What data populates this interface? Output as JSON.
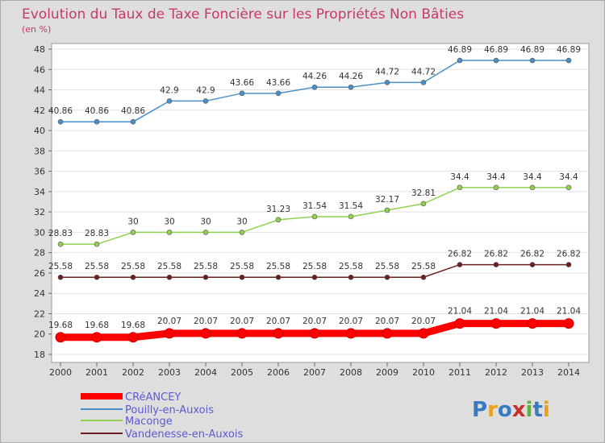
{
  "chart_data": {
    "type": "line",
    "title": "Evolution du Taux de Taxe Foncière sur les Propriétés Non Bâties",
    "unit_label": "(en %)",
    "x": [
      "2000",
      "2001",
      "2002",
      "2003",
      "2004",
      "2005",
      "2006",
      "2007",
      "2008",
      "2009",
      "2010",
      "2011",
      "2012",
      "2013",
      "2014"
    ],
    "ylim": [
      18,
      48
    ],
    "yticks": [
      "18",
      "20",
      "22",
      "24",
      "26",
      "28",
      "30",
      "32",
      "34",
      "36",
      "38",
      "40",
      "42",
      "44",
      "46",
      "48"
    ],
    "grid": "horizontal",
    "legend_position": "bottom-left",
    "series": [
      {
        "name": "CRéANCEY",
        "color": "#ff0000",
        "values": [
          19.68,
          19.68,
          19.68,
          20.07,
          20.07,
          20.07,
          20.07,
          20.07,
          20.07,
          20.07,
          20.07,
          21.04,
          21.04,
          21.04,
          21.04
        ],
        "labels": [
          "19.68",
          "19.68",
          "19.68",
          "20.07",
          "20.07",
          "20.07",
          "20.07",
          "20.07",
          "20.07",
          "20.07",
          "20.07",
          "21.04",
          "21.04",
          "21.04",
          "21.04"
        ]
      },
      {
        "name": "Pouilly-en-Auxois",
        "color": "#4a90c8",
        "values": [
          40.86,
          40.86,
          40.86,
          42.9,
          42.9,
          43.66,
          43.66,
          44.26,
          44.26,
          44.72,
          44.72,
          46.89,
          46.89,
          46.89,
          46.89
        ],
        "labels": [
          "40.86",
          "40.86",
          "40.86",
          "42.9",
          "42.9",
          "43.66",
          "43.66",
          "44.26",
          "44.26",
          "44.72",
          "44.72",
          "46.89",
          "46.89",
          "46.89",
          "46.89"
        ]
      },
      {
        "name": "Maconge",
        "color": "#8fd14f",
        "values": [
          28.83,
          28.83,
          30,
          30,
          30,
          30,
          31.23,
          31.54,
          31.54,
          32.17,
          32.81,
          34.4,
          34.4,
          34.4,
          34.4
        ],
        "labels": [
          "28.83",
          "28.83",
          "30",
          "30",
          "30",
          "30",
          "31.23",
          "31.54",
          "31.54",
          "32.17",
          "32.81",
          "34.4",
          "34.4",
          "34.4",
          "34.4"
        ]
      },
      {
        "name": "Vandenesse-en-Auxois",
        "color": "#6b1f1f",
        "values": [
          25.58,
          25.58,
          25.58,
          25.58,
          25.58,
          25.58,
          25.58,
          25.58,
          25.58,
          25.58,
          25.58,
          26.82,
          26.82,
          26.82,
          26.82
        ],
        "labels": [
          "25.58",
          "25.58",
          "25.58",
          "25.58",
          "25.58",
          "25.58",
          "25.58",
          "25.58",
          "25.58",
          "25.58",
          "25.58",
          "26.82",
          "26.82",
          "26.82",
          "26.82"
        ]
      }
    ]
  },
  "logo": {
    "text": "Proxiti",
    "letters": [
      "P",
      "r",
      "o",
      "x",
      "i",
      "t",
      "i"
    ],
    "colors": [
      "#3a7ac0",
      "#e8a020",
      "#3a7ac0",
      "#c83030",
      "#60b040",
      "#3a7ac0",
      "#e8a020"
    ]
  }
}
